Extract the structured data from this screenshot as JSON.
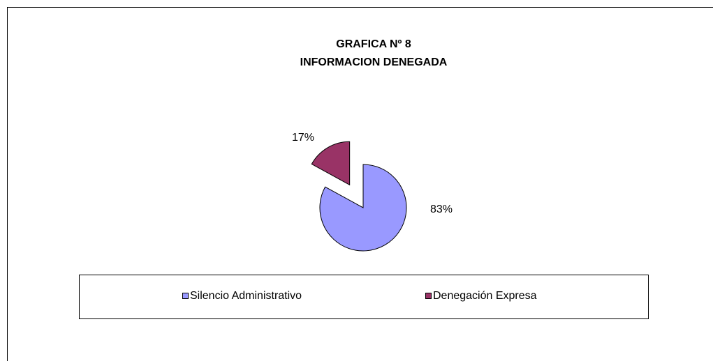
{
  "chart_data": {
    "type": "pie",
    "title": [
      "GRAFICA Nº 8",
      "INFORMACION DENEGADA"
    ],
    "categories": [
      "Silencio Administrativo",
      "Denegación Expresa"
    ],
    "values": [
      83,
      17
    ],
    "value_labels": [
      "83%",
      "17%"
    ],
    "colors": [
      "#9999ff",
      "#993366"
    ],
    "exploded": [
      false,
      true
    ],
    "legend": "bottom"
  }
}
